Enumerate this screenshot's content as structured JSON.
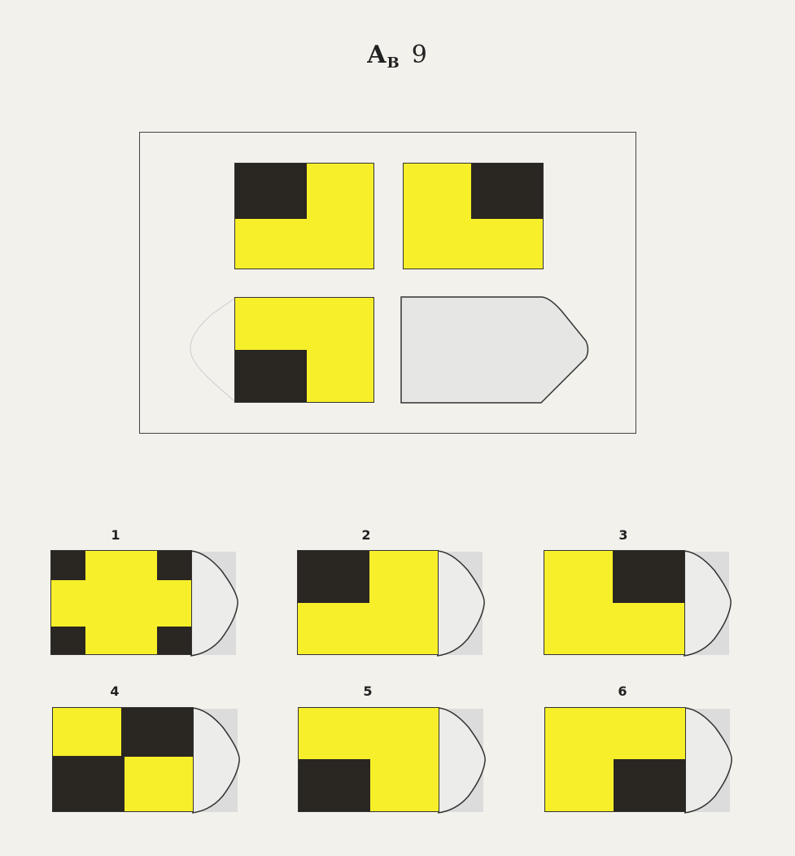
{
  "header": {
    "letter": "A",
    "subscript": "B",
    "number": "9"
  },
  "colors": {
    "yellow": "#f6ef2a",
    "black": "#2a2622",
    "empty": "#e6e6e4",
    "tab": "#e2e2e2"
  },
  "matrix": {
    "cells": [
      {
        "black_corner": "top-left"
      },
      {
        "black_corner": "top-right"
      },
      {
        "black_corner": "bottom-left"
      },
      {
        "black_corner": "missing"
      }
    ]
  },
  "options": [
    {
      "label": "1",
      "pattern": "four-corners"
    },
    {
      "label": "2",
      "pattern": "top-left"
    },
    {
      "label": "3",
      "pattern": "top-right"
    },
    {
      "label": "4",
      "pattern": "checkerboard"
    },
    {
      "label": "5",
      "pattern": "bottom-left"
    },
    {
      "label": "6",
      "pattern": "bottom-right"
    }
  ]
}
